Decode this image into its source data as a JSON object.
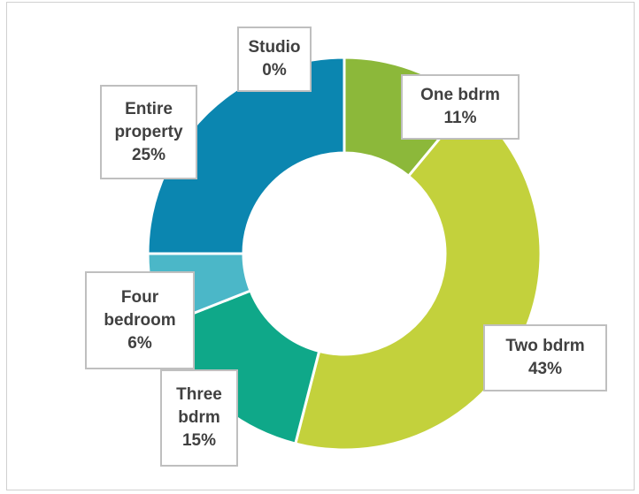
{
  "chart_data": {
    "type": "donut",
    "categories": [
      "One bdrm",
      "Two bdrm",
      "Three bdrm",
      "Four bedroom",
      "Entire property",
      "Studio"
    ],
    "values": [
      11,
      43,
      15,
      6,
      25,
      0
    ],
    "value_labels": [
      "11%",
      "43%",
      "15%",
      "6%",
      "25%",
      "0%"
    ],
    "colors": [
      "#8cb83a",
      "#c3d13c",
      "#0fa889",
      "#4bb7c8",
      "#0b86b0",
      "#0b6fa0"
    ]
  }
}
